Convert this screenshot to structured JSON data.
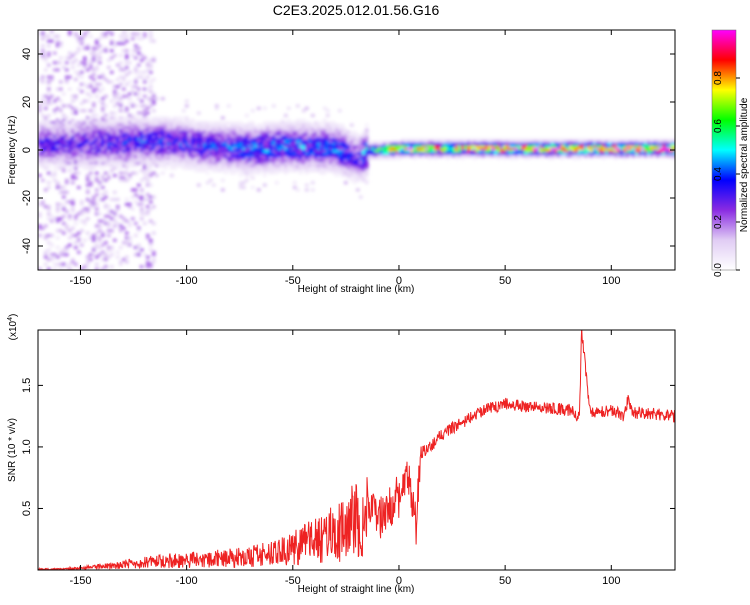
{
  "title": "C2E3.2025.012.01.56.G16",
  "chart_data": [
    {
      "type": "heatmap",
      "title": "C2E3.2025.012.01.56.G16",
      "xlabel": "Height of straight line (km)",
      "ylabel": "Frequency (Hz)",
      "xlim": [
        -170,
        130
      ],
      "ylim": [
        -50,
        50
      ],
      "x_ticks": [
        "-150",
        "-100",
        "-50",
        "0",
        "50",
        "100"
      ],
      "y_ticks": [
        "40",
        "20",
        "0",
        "-20",
        "-40"
      ],
      "colorbar": {
        "label": "Normalized spectral amplitude",
        "range": [
          0.0,
          1.0
        ],
        "ticks": [
          "0.0",
          "0.2",
          "0.4",
          "0.6",
          "0.8"
        ],
        "colormap": [
          "#ffffff",
          "#e0ccf4",
          "#8a2be2",
          "#0000ff",
          "#00ffff",
          "#00ff00",
          "#ffff00",
          "#ff0000",
          "#ff00ff"
        ]
      },
      "ridge": {
        "description_points_x": [
          -150,
          -130,
          -110,
          -90,
          -70,
          -50,
          -30,
          -20,
          -15,
          0,
          20,
          50,
          80,
          100,
          130
        ],
        "center_frequency_hz": [
          3,
          4,
          4,
          2,
          1,
          2,
          1,
          -3,
          0,
          1,
          1,
          1,
          1,
          1,
          1
        ],
        "peak_amplitude": [
          0.3,
          0.35,
          0.35,
          0.35,
          0.4,
          0.4,
          0.4,
          0.3,
          0.5,
          0.8,
          0.85,
          0.9,
          0.9,
          0.9,
          0.9
        ]
      }
    },
    {
      "type": "line",
      "xlabel": "Height of straight line (km)",
      "ylabel": "SNR (10 * v/v)",
      "y_multiplier": "(x10^4)",
      "y_multiplier_base": "(x10",
      "y_multiplier_exp": "4",
      "y_multiplier_close": ")",
      "xlim": [
        -170,
        130
      ],
      "ylim": [
        0,
        1.95
      ],
      "x_ticks": [
        "-150",
        "-100",
        "-50",
        "0",
        "50",
        "100"
      ],
      "y_ticks": [
        "0.5",
        "1.0",
        "1.5"
      ],
      "series": [
        {
          "color": "#ee2222",
          "x": [
            -170,
            -160,
            -150,
            -140,
            -130,
            -120,
            -110,
            -100,
            -90,
            -80,
            -70,
            -60,
            -50,
            -45,
            -40,
            -35,
            -30,
            -25,
            -20,
            -15,
            -10,
            -5,
            0,
            5,
            8,
            10,
            15,
            20,
            25,
            30,
            40,
            50,
            60,
            70,
            80,
            85,
            86,
            90,
            100,
            106,
            108,
            110,
            120,
            130
          ],
          "y": [
            0.01,
            0.01,
            0.02,
            0.04,
            0.06,
            0.08,
            0.1,
            0.1,
            0.12,
            0.13,
            0.14,
            0.18,
            0.22,
            0.3,
            0.32,
            0.35,
            0.4,
            0.45,
            0.55,
            0.6,
            0.4,
            0.5,
            0.6,
            0.75,
            0.35,
            0.95,
            1.0,
            1.1,
            1.15,
            1.2,
            1.3,
            1.35,
            1.33,
            1.32,
            1.3,
            1.25,
            1.95,
            1.28,
            1.3,
            1.25,
            1.4,
            1.28,
            1.27,
            1.25
          ]
        }
      ]
    }
  ]
}
